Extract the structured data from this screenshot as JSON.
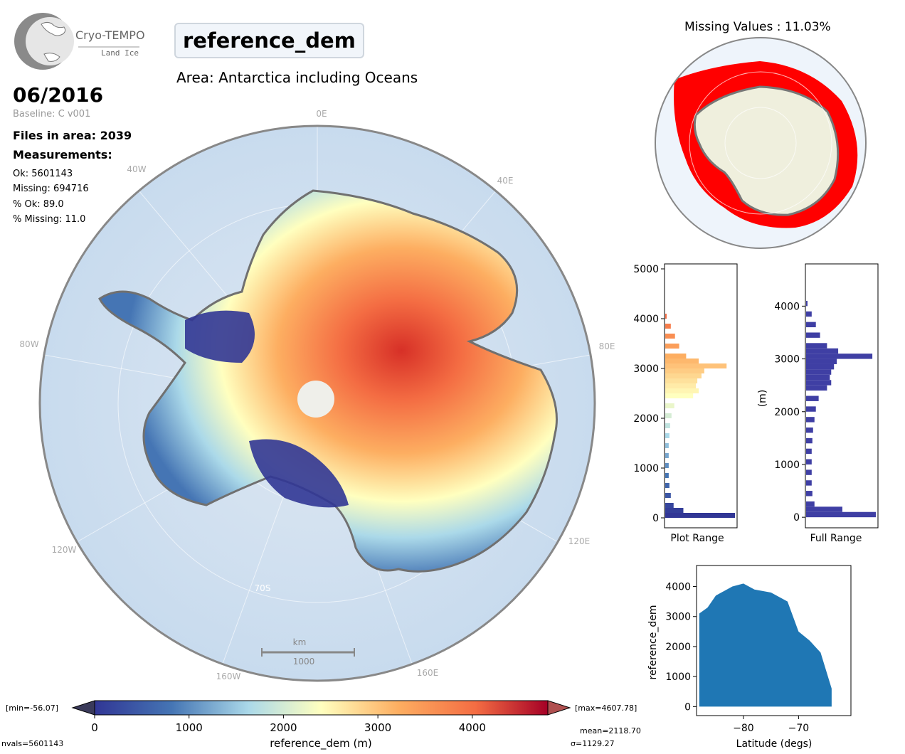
{
  "logo": {
    "name": "Cryo-TEMPO",
    "sub": "Land Ice"
  },
  "header": {
    "parameter": "reference_dem",
    "area": "Area: Antarctica including Oceans",
    "date": "06/2016",
    "baseline": "Baseline: C v001",
    "files": "Files in area: 2039",
    "measurements_heading": "Measurements:",
    "ok": "Ok: 5601143",
    "missing": "Missing: 694716",
    "pct_ok": "% Ok: 89.0",
    "pct_missing": "% Missing: 11.0"
  },
  "main_map": {
    "lon_labels": [
      "0E",
      "40E",
      "80E",
      "120E",
      "160E",
      "160W",
      "120W",
      "80W",
      "40W"
    ],
    "lat_label": "70S",
    "scale_unit": "km",
    "scale_value": "1000"
  },
  "missing_map": {
    "title": "Missing Values : 11.03%",
    "missing_color": "#ff0000"
  },
  "colorbar": {
    "label": "reference_dem (m)",
    "ticks": [
      "0",
      "1000",
      "2000",
      "3000",
      "4000"
    ],
    "min_text": "[min=-56.07]",
    "max_text": "[max=4607.78]",
    "mean_text": "mean=2118.70",
    "sigma_text": "σ=1129.27",
    "nvals_text": "nvals=5601143",
    "colors": [
      "#313695",
      "#4575b4",
      "#abd9e9",
      "#ffffbf",
      "#fdae61",
      "#f46d43",
      "#a50026"
    ]
  },
  "chart_data": [
    {
      "type": "bar",
      "orientation": "horizontal",
      "xlabel": "Plot Range",
      "ylabel": "",
      "ylim": [
        -200,
        5100
      ],
      "yticks": [
        "0",
        "1000",
        "2000",
        "3000",
        "4000",
        "5000"
      ],
      "bins": [
        {
          "y": 0,
          "v": 1.0
        },
        {
          "y": 100,
          "v": 0.26
        },
        {
          "y": 200,
          "v": 0.12
        },
        {
          "y": 400,
          "v": 0.08
        },
        {
          "y": 600,
          "v": 0.06
        },
        {
          "y": 800,
          "v": 0.05
        },
        {
          "y": 1000,
          "v": 0.05
        },
        {
          "y": 1200,
          "v": 0.05
        },
        {
          "y": 1400,
          "v": 0.05
        },
        {
          "y": 1600,
          "v": 0.06
        },
        {
          "y": 1800,
          "v": 0.07
        },
        {
          "y": 2000,
          "v": 0.09
        },
        {
          "y": 2200,
          "v": 0.13
        },
        {
          "y": 2400,
          "v": 0.4
        },
        {
          "y": 2500,
          "v": 0.48
        },
        {
          "y": 2600,
          "v": 0.44
        },
        {
          "y": 2700,
          "v": 0.46
        },
        {
          "y": 2800,
          "v": 0.52
        },
        {
          "y": 2900,
          "v": 0.56
        },
        {
          "y": 3000,
          "v": 0.88
        },
        {
          "y": 3100,
          "v": 0.48
        },
        {
          "y": 3200,
          "v": 0.3
        },
        {
          "y": 3400,
          "v": 0.2
        },
        {
          "y": 3600,
          "v": 0.14
        },
        {
          "y": 3800,
          "v": 0.08
        },
        {
          "y": 4000,
          "v": 0.02
        }
      ]
    },
    {
      "type": "bar",
      "orientation": "horizontal",
      "xlabel": "Full Range",
      "ylabel": "(m)",
      "ylim": [
        -200,
        4800
      ],
      "yticks": [
        "0",
        "1000",
        "2000",
        "3000",
        "4000"
      ],
      "bins": [
        {
          "y": 0,
          "v": 1.0
        },
        {
          "y": 100,
          "v": 0.52
        },
        {
          "y": 200,
          "v": 0.12
        },
        {
          "y": 400,
          "v": 0.09
        },
        {
          "y": 600,
          "v": 0.08
        },
        {
          "y": 800,
          "v": 0.08
        },
        {
          "y": 1000,
          "v": 0.08
        },
        {
          "y": 1200,
          "v": 0.08
        },
        {
          "y": 1400,
          "v": 0.09
        },
        {
          "y": 1600,
          "v": 0.1
        },
        {
          "y": 1800,
          "v": 0.12
        },
        {
          "y": 2000,
          "v": 0.14
        },
        {
          "y": 2200,
          "v": 0.18
        },
        {
          "y": 2400,
          "v": 0.3
        },
        {
          "y": 2500,
          "v": 0.36
        },
        {
          "y": 2600,
          "v": 0.34
        },
        {
          "y": 2700,
          "v": 0.36
        },
        {
          "y": 2800,
          "v": 0.4
        },
        {
          "y": 2900,
          "v": 0.44
        },
        {
          "y": 3000,
          "v": 0.95
        },
        {
          "y": 3100,
          "v": 0.46
        },
        {
          "y": 3200,
          "v": 0.3
        },
        {
          "y": 3400,
          "v": 0.2
        },
        {
          "y": 3600,
          "v": 0.14
        },
        {
          "y": 3800,
          "v": 0.08
        },
        {
          "y": 4000,
          "v": 0.02
        }
      ],
      "color": "#3f3fa4"
    },
    {
      "type": "scatter",
      "xlabel": "Latitude (degs)",
      "ylabel": "reference_dem",
      "xlim": [
        -88.5,
        -60.5
      ],
      "ylim": [
        -300,
        4700
      ],
      "xticks": [
        "−80",
        "−70"
      ],
      "yticks": [
        "0",
        "1000",
        "2000",
        "3000",
        "4000"
      ],
      "envelope_upper": [
        [
          -88.0,
          3100
        ],
        [
          -86.5,
          3300
        ],
        [
          -85,
          3700
        ],
        [
          -83,
          3900
        ],
        [
          -82,
          4000
        ],
        [
          -80,
          4100
        ],
        [
          -78,
          3900
        ],
        [
          -75,
          3800
        ],
        [
          -72,
          3500
        ],
        [
          -70,
          2500
        ],
        [
          -68,
          2200
        ],
        [
          -66,
          1800
        ],
        [
          -64,
          600
        ]
      ],
      "envelope_lower": [
        [
          -64,
          0
        ],
        [
          -88,
          0
        ]
      ],
      "color": "#1f77b4"
    }
  ]
}
